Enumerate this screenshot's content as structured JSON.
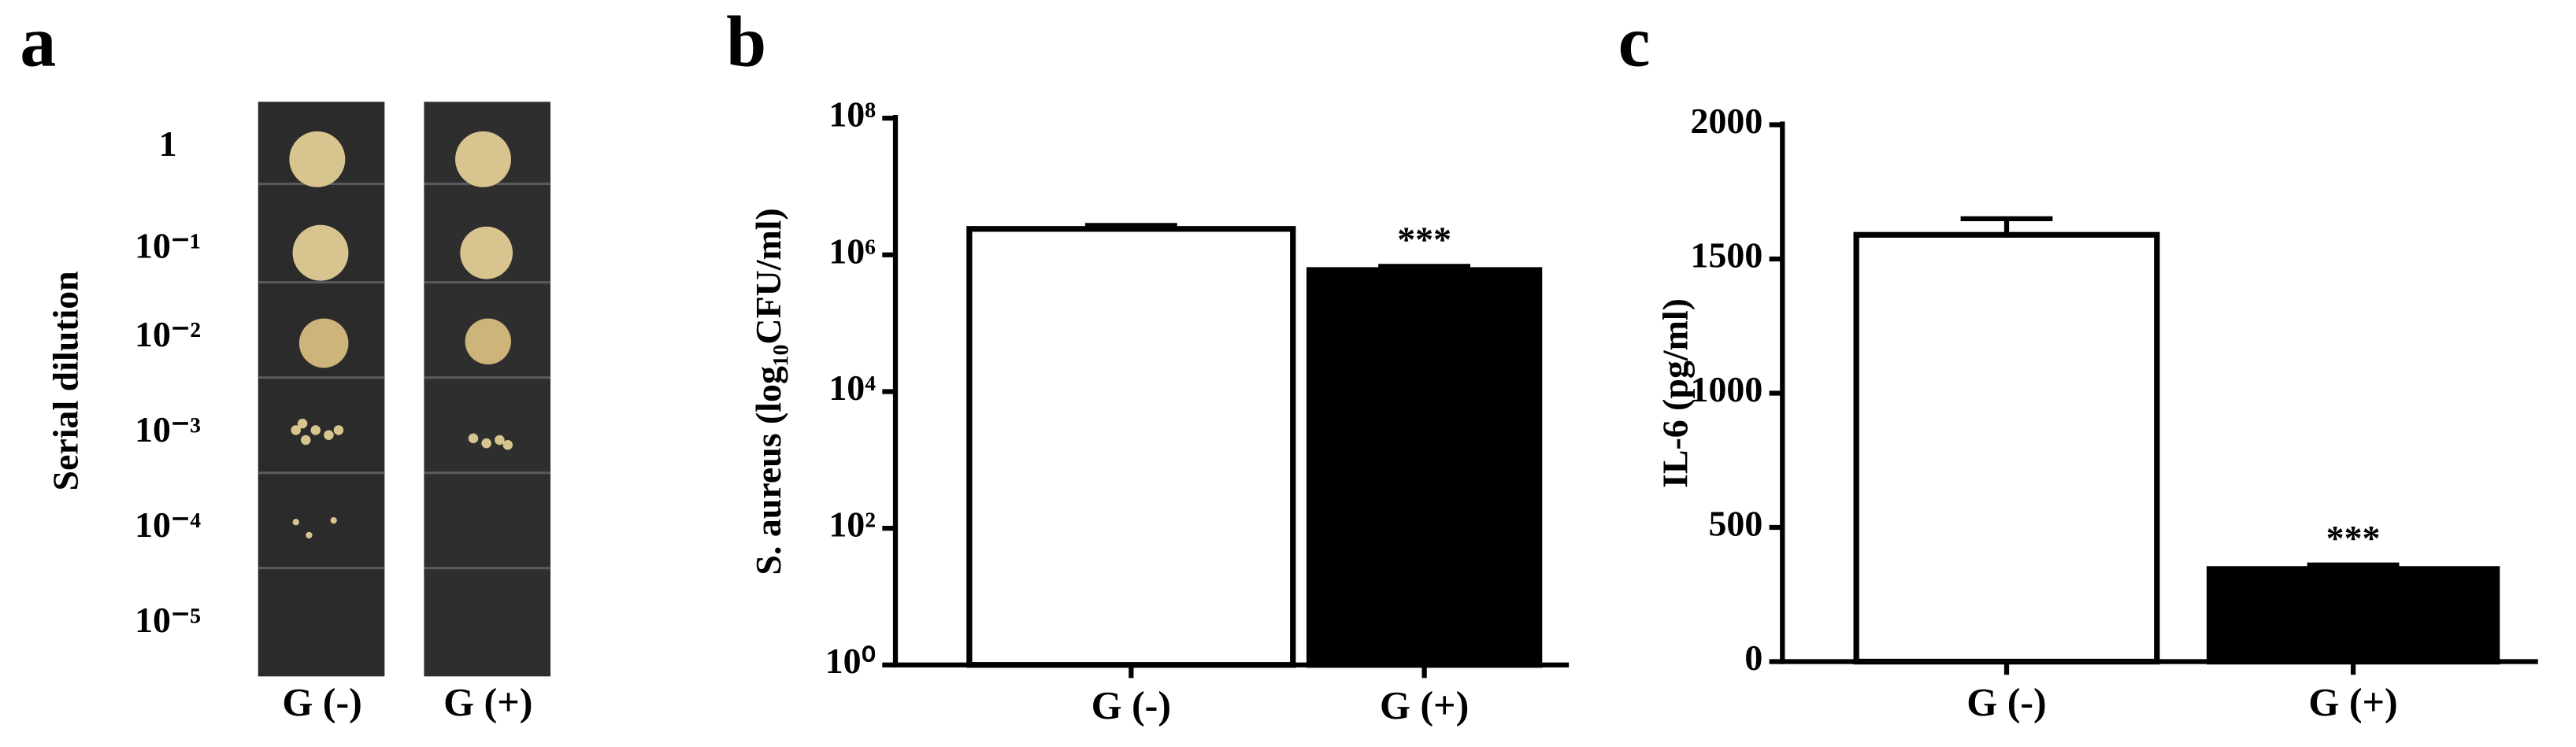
{
  "panel_a": {
    "label": "a",
    "y_label": "Serial dilution",
    "rows": [
      "1",
      "10⁻¹",
      "10⁻²",
      "10⁻³",
      "10⁻⁴",
      "10⁻⁵"
    ],
    "columns": [
      "G (-)",
      "G (+)"
    ]
  },
  "chart_data": [
    {
      "type": "bar",
      "label": "b",
      "y_label": "S. aureus (log₁₀CFU/ml)",
      "categories": [
        "G (-)",
        "G (+)"
      ],
      "values": [
        2400000,
        600000
      ],
      "errors": [
        300000,
        80000
      ],
      "colors": [
        "#ffffff",
        "#000000"
      ],
      "log_scale": true,
      "ylim": [
        1,
        100000000
      ],
      "yticks": [
        {
          "value": 1,
          "label": "10⁰"
        },
        {
          "value": 100,
          "label": "10²"
        },
        {
          "value": 10000,
          "label": "10⁴"
        },
        {
          "value": 1000000,
          "label": "10⁶"
        },
        {
          "value": 100000000,
          "label": "10⁸"
        }
      ],
      "annotations": [
        {
          "text": "***",
          "category": "G (+)"
        }
      ]
    },
    {
      "type": "bar",
      "label": "c",
      "y_label": "IL-6 (pg/ml)",
      "categories": [
        "G (-)",
        "G (+)"
      ],
      "values": [
        1590,
        345
      ],
      "errors": [
        60,
        15
      ],
      "colors": [
        "#ffffff",
        "#000000"
      ],
      "log_scale": false,
      "ylim": [
        0,
        2000
      ],
      "yticks": [
        0,
        500,
        1000,
        1500,
        2000
      ],
      "annotations": [
        {
          "text": "***",
          "category": "G (+)"
        }
      ]
    }
  ]
}
